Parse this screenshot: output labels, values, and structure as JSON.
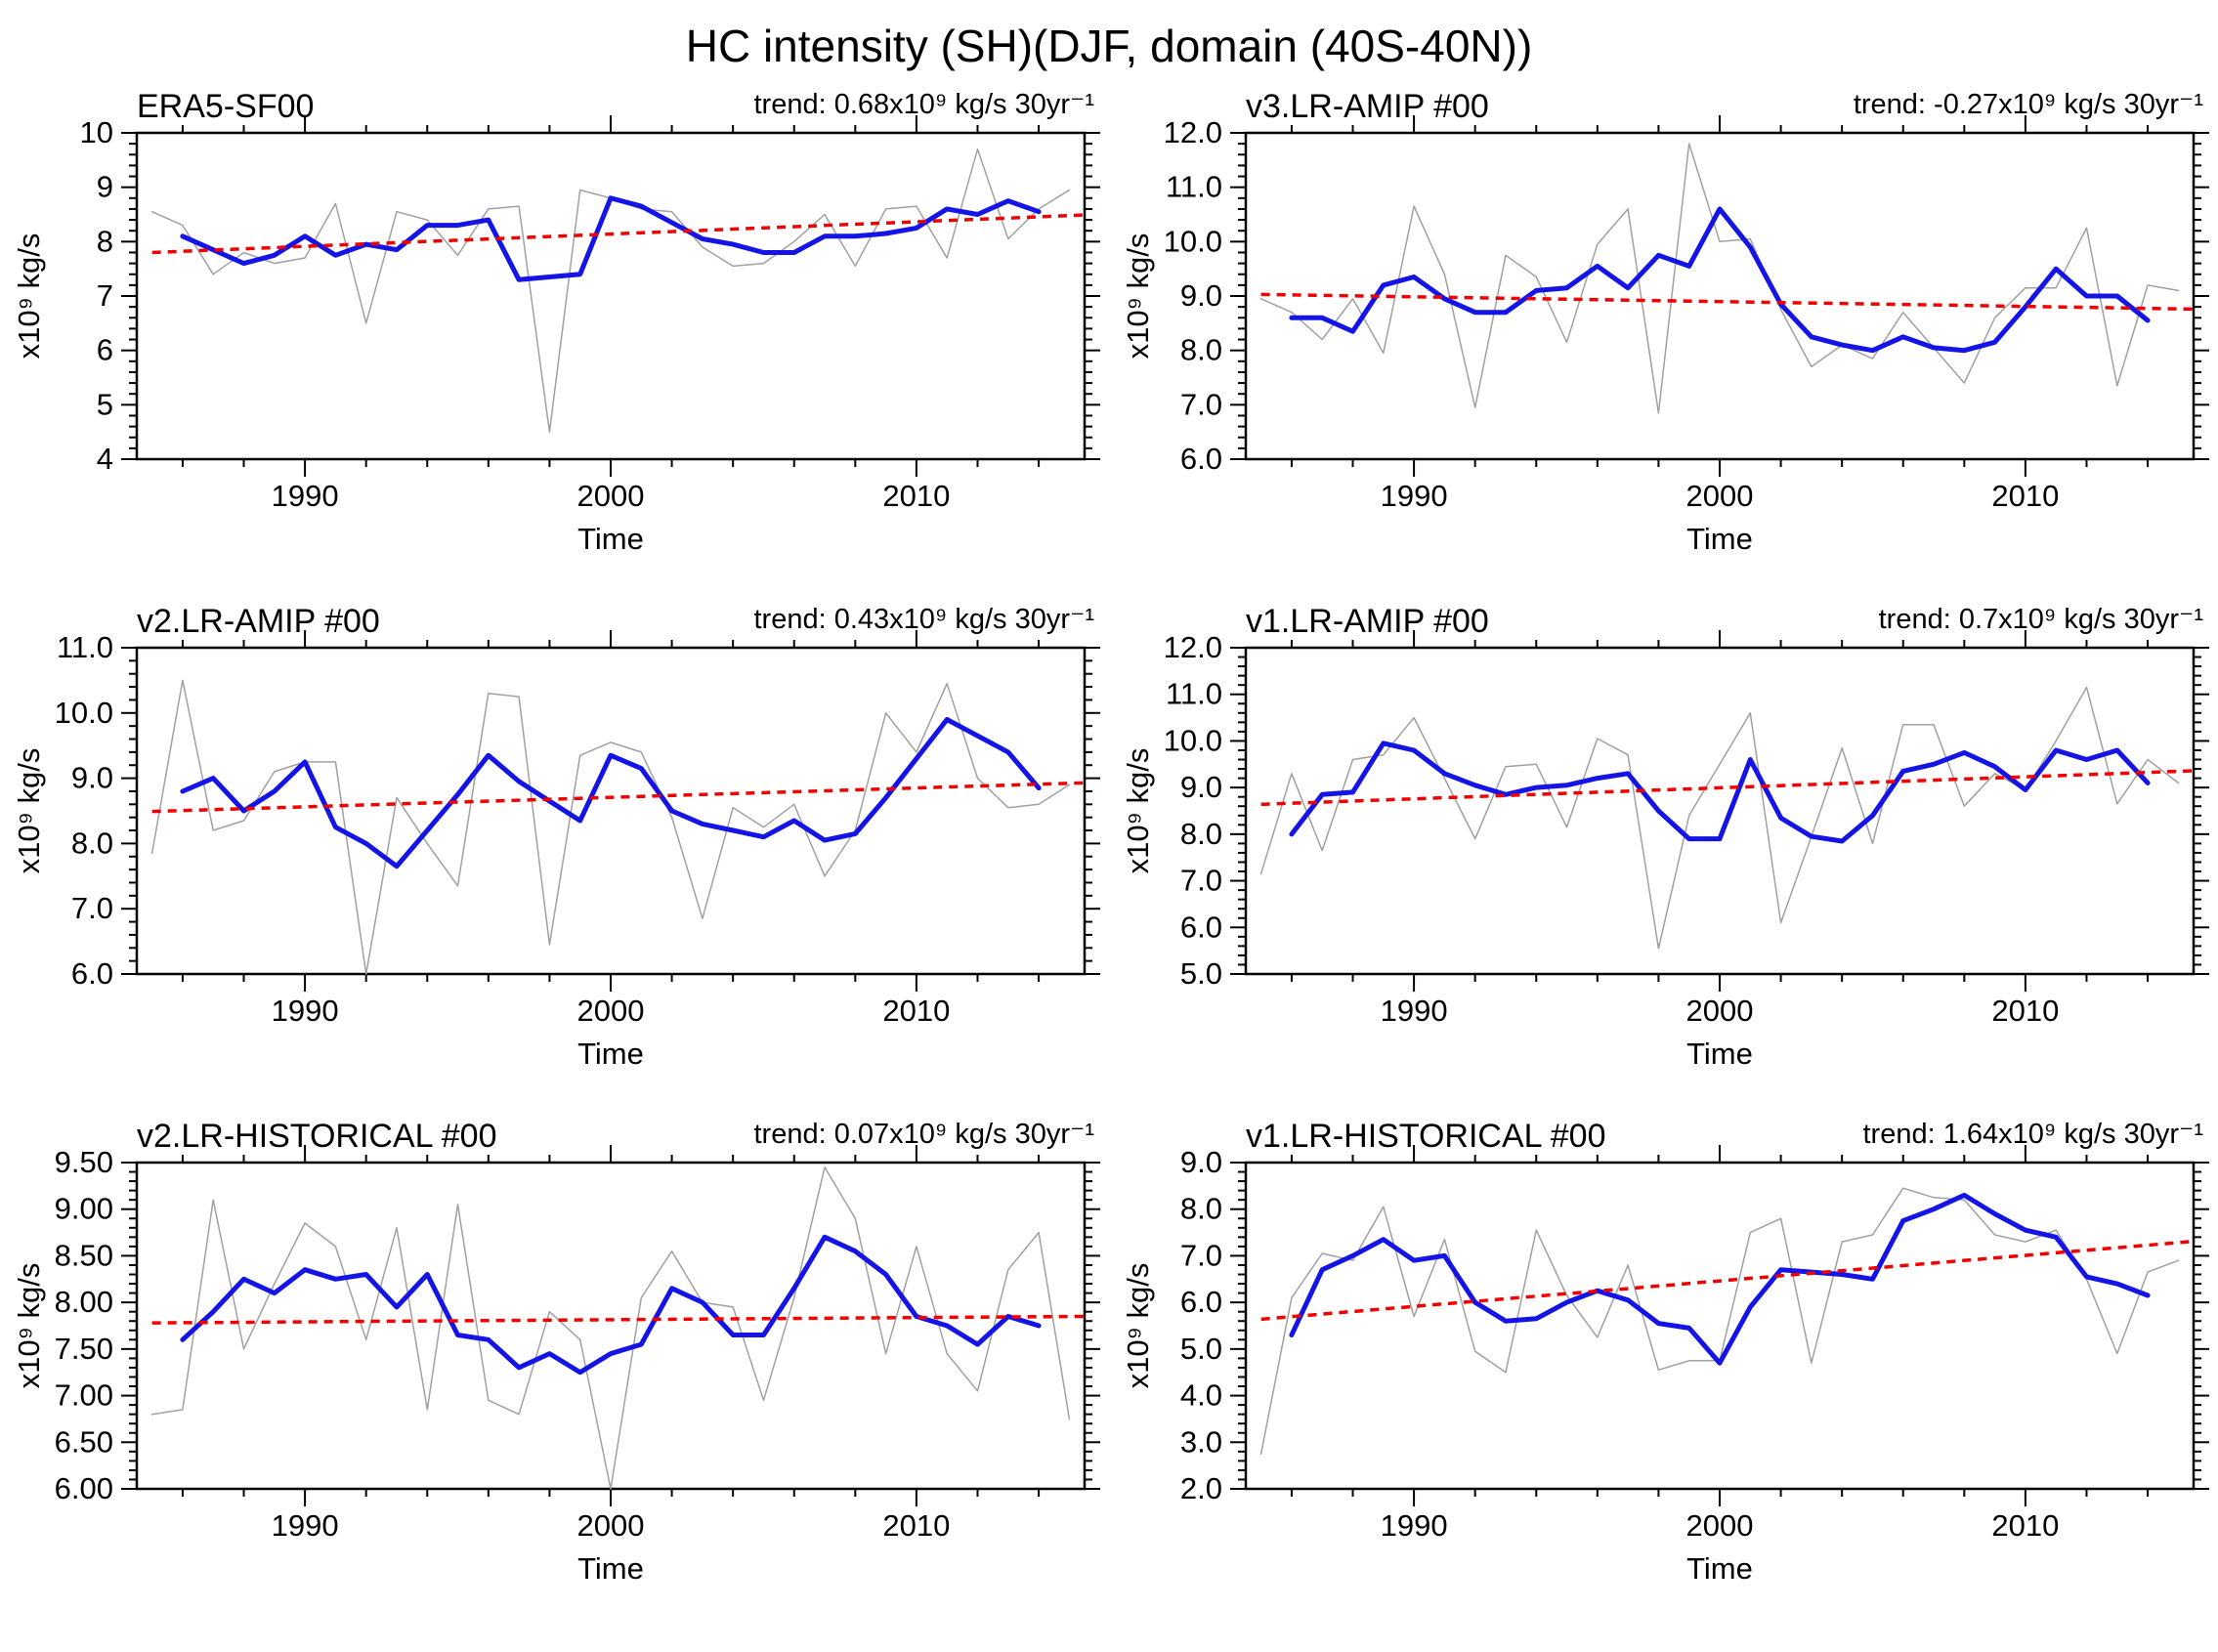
{
  "title": "HC intensity (SH)(DJF, domain (40S-40N))",
  "chart_data": [
    {
      "type": "line",
      "title": "ERA5-SF00",
      "trend_label": "trend: 0.68x10⁹ kg/s 30yr⁻¹",
      "trend_value": 0.68,
      "ylabel": "x10⁹ kg/s",
      "xlabel": "Time",
      "ylim": [
        4,
        10
      ],
      "ytick_step": 1,
      "ytick_decimals": 0,
      "xlim": [
        1984.5,
        2015.5
      ],
      "xticks": [
        1990,
        2000,
        2010
      ],
      "xminor_years": [
        1986,
        1988,
        1992,
        1994,
        1996,
        1998,
        2002,
        2004,
        2006,
        2008,
        2012,
        2014
      ],
      "grid": false,
      "legend": "none",
      "series": [
        {
          "name": "annual",
          "start_year": 1985,
          "values": [
            8.55,
            8.3,
            7.4,
            7.8,
            7.6,
            7.7,
            8.7,
            6.5,
            8.55,
            8.4,
            7.75,
            8.6,
            8.65,
            4.5,
            8.95,
            8.8,
            8.6,
            8.55,
            7.9,
            7.55,
            7.6,
            8.0,
            8.5,
            7.55,
            8.6,
            8.65,
            7.7,
            9.7,
            8.05,
            8.6,
            8.95
          ]
        },
        {
          "name": "smoothed",
          "start_year": 1986,
          "values": [
            8.1,
            7.85,
            7.6,
            7.75,
            8.1,
            7.75,
            7.95,
            7.85,
            8.3,
            8.3,
            8.4,
            7.3,
            7.35,
            7.4,
            8.8,
            8.65,
            8.35,
            8.05,
            7.95,
            7.8,
            7.8,
            8.1,
            8.1,
            8.15,
            8.25,
            8.6,
            8.5,
            8.75,
            8.55
          ]
        },
        {
          "name": "trend",
          "x": [
            1985,
            2015.5
          ],
          "y": [
            7.8,
            8.49
          ]
        }
      ]
    },
    {
      "type": "line",
      "title": "v3.LR-AMIP  #00",
      "trend_label": "trend: -0.27x10⁹ kg/s 30yr⁻¹",
      "trend_value": -0.27,
      "ylabel": "x10⁹ kg/s",
      "xlabel": "Time",
      "ylim": [
        6,
        12
      ],
      "ytick_step": 1,
      "ytick_decimals": 1,
      "xlim": [
        1984.5,
        2015.5
      ],
      "xticks": [
        1990,
        2000,
        2010
      ],
      "xminor_years": [
        1986,
        1988,
        1992,
        1994,
        1996,
        1998,
        2002,
        2004,
        2006,
        2008,
        2012,
        2014
      ],
      "grid": false,
      "legend": "none",
      "series": [
        {
          "name": "annual",
          "start_year": 1985,
          "values": [
            8.95,
            8.7,
            8.2,
            8.95,
            7.95,
            10.65,
            9.4,
            6.95,
            9.75,
            9.35,
            8.15,
            9.95,
            10.6,
            6.85,
            11.8,
            10.0,
            10.05,
            8.75,
            7.7,
            8.1,
            7.85,
            8.7,
            8.05,
            7.4,
            8.6,
            9.15,
            9.15,
            10.25,
            7.35,
            9.2,
            9.1
          ]
        },
        {
          "name": "smoothed",
          "start_year": 1986,
          "values": [
            8.6,
            8.6,
            8.35,
            9.2,
            9.35,
            8.95,
            8.7,
            8.7,
            9.1,
            9.15,
            9.55,
            9.15,
            9.75,
            9.55,
            10.6,
            9.9,
            8.85,
            8.25,
            8.1,
            8.0,
            8.25,
            8.05,
            8.0,
            8.15,
            8.8,
            9.5,
            9.0,
            9.0,
            8.55
          ]
        },
        {
          "name": "trend",
          "x": [
            1985,
            2015.5
          ],
          "y": [
            9.03,
            8.76
          ]
        }
      ]
    },
    {
      "type": "line",
      "title": "v2.LR-AMIP  #00",
      "trend_label": "trend: 0.43x10⁹ kg/s 30yr⁻¹",
      "trend_value": 0.43,
      "ylabel": "x10⁹ kg/s",
      "xlabel": "Time",
      "ylim": [
        6,
        11
      ],
      "ytick_step": 1,
      "ytick_decimals": 1,
      "xlim": [
        1984.5,
        2015.5
      ],
      "xticks": [
        1990,
        2000,
        2010
      ],
      "xminor_years": [
        1986,
        1988,
        1992,
        1994,
        1996,
        1998,
        2002,
        2004,
        2006,
        2008,
        2012,
        2014
      ],
      "grid": false,
      "legend": "none",
      "series": [
        {
          "name": "annual",
          "start_year": 1985,
          "values": [
            7.85,
            10.5,
            8.2,
            8.35,
            9.1,
            9.25,
            9.25,
            6.0,
            8.7,
            8.0,
            7.35,
            10.3,
            10.25,
            6.45,
            9.35,
            9.55,
            9.4,
            8.4,
            6.85,
            8.55,
            8.25,
            8.6,
            7.5,
            8.2,
            10.0,
            9.4,
            10.45,
            9.0,
            8.55,
            8.6,
            8.9
          ]
        },
        {
          "name": "smoothed",
          "start_year": 1986,
          "values": [
            8.8,
            9.0,
            8.5,
            8.8,
            9.25,
            8.25,
            8.0,
            7.65,
            8.2,
            8.75,
            9.35,
            8.95,
            8.65,
            8.35,
            9.35,
            9.15,
            8.5,
            8.3,
            8.2,
            8.1,
            8.35,
            8.05,
            8.15,
            8.7,
            9.3,
            9.9,
            9.65,
            9.4,
            8.85
          ]
        },
        {
          "name": "trend",
          "x": [
            1985,
            2015.5
          ],
          "y": [
            8.49,
            8.93
          ]
        }
      ]
    },
    {
      "type": "line",
      "title": "v1.LR-AMIP  #00",
      "trend_label": "trend: 0.7x10⁹ kg/s 30yr⁻¹",
      "trend_value": 0.7,
      "ylabel": "x10⁹ kg/s",
      "xlabel": "Time",
      "ylim": [
        5,
        12
      ],
      "ytick_step": 1,
      "ytick_decimals": 1,
      "xlim": [
        1984.5,
        2015.5
      ],
      "xticks": [
        1990,
        2000,
        2010
      ],
      "xminor_years": [
        1986,
        1988,
        1992,
        1994,
        1996,
        1998,
        2002,
        2004,
        2006,
        2008,
        2012,
        2014
      ],
      "grid": false,
      "legend": "none",
      "series": [
        {
          "name": "annual",
          "start_year": 1985,
          "values": [
            7.15,
            9.3,
            7.65,
            9.6,
            9.7,
            10.5,
            9.2,
            7.9,
            9.45,
            9.5,
            8.15,
            10.05,
            9.7,
            5.55,
            8.4,
            9.5,
            10.6,
            6.1,
            7.95,
            9.85,
            7.8,
            10.35,
            10.35,
            8.6,
            9.3,
            8.95,
            10.0,
            11.15,
            8.65,
            9.6,
            9.1
          ]
        },
        {
          "name": "smoothed",
          "start_year": 1986,
          "values": [
            8.0,
            8.85,
            8.9,
            9.95,
            9.8,
            9.3,
            9.05,
            8.85,
            9.0,
            9.05,
            9.2,
            9.3,
            8.5,
            7.9,
            7.9,
            9.6,
            8.35,
            7.95,
            7.85,
            8.4,
            9.35,
            9.5,
            9.75,
            9.45,
            8.95,
            9.8,
            9.6,
            9.8,
            9.1
          ]
        },
        {
          "name": "trend",
          "x": [
            1985,
            2015.5
          ],
          "y": [
            8.64,
            9.36
          ]
        }
      ]
    },
    {
      "type": "line",
      "title": "v2.LR-HISTORICAL  #00",
      "trend_label": "trend: 0.07x10⁹ kg/s 30yr⁻¹",
      "trend_value": 0.07,
      "ylabel": "x10⁹ kg/s",
      "xlabel": "Time",
      "ylim": [
        6,
        9.5
      ],
      "ytick_step": 0.5,
      "ytick_decimals": 2,
      "xlim": [
        1984.5,
        2015.5
      ],
      "xticks": [
        1990,
        2000,
        2010
      ],
      "xminor_years": [
        1986,
        1988,
        1992,
        1994,
        1996,
        1998,
        2002,
        2004,
        2006,
        2008,
        2012,
        2014
      ],
      "grid": false,
      "legend": "none",
      "series": [
        {
          "name": "annual",
          "start_year": 1985,
          "values": [
            6.8,
            6.85,
            9.1,
            7.5,
            8.2,
            8.85,
            8.6,
            7.6,
            8.8,
            6.85,
            9.05,
            6.95,
            6.8,
            7.9,
            7.6,
            6.0,
            8.05,
            8.55,
            8.0,
            7.95,
            6.95,
            8.05,
            9.45,
            8.9,
            7.45,
            8.6,
            7.45,
            7.05,
            8.35,
            8.75,
            6.75
          ]
        },
        {
          "name": "smoothed",
          "start_year": 1986,
          "values": [
            7.6,
            7.9,
            8.25,
            8.1,
            8.35,
            8.25,
            8.3,
            7.95,
            8.3,
            7.65,
            7.6,
            7.3,
            7.45,
            7.25,
            7.45,
            7.55,
            8.15,
            8.0,
            7.65,
            7.65,
            8.15,
            8.7,
            8.55,
            8.3,
            7.85,
            7.75,
            7.55,
            7.85,
            7.75
          ]
        },
        {
          "name": "trend",
          "x": [
            1985,
            2015.5
          ],
          "y": [
            7.78,
            7.85
          ]
        }
      ]
    },
    {
      "type": "line",
      "title": "v1.LR-HISTORICAL  #00",
      "trend_label": "trend: 1.64x10⁹ kg/s 30yr⁻¹",
      "trend_value": 1.64,
      "ylabel": "x10⁹ kg/s",
      "xlabel": "Time",
      "ylim": [
        2,
        9
      ],
      "ytick_step": 1,
      "ytick_decimals": 1,
      "xlim": [
        1984.5,
        2015.5
      ],
      "xticks": [
        1990,
        2000,
        2010
      ],
      "xminor_years": [
        1986,
        1988,
        1992,
        1994,
        1996,
        1998,
        2002,
        2004,
        2006,
        2008,
        2012,
        2014
      ],
      "grid": false,
      "legend": "none",
      "series": [
        {
          "name": "annual",
          "start_year": 1985,
          "values": [
            2.75,
            6.1,
            7.05,
            6.9,
            8.05,
            5.7,
            7.35,
            4.95,
            4.5,
            7.55,
            6.15,
            5.25,
            6.8,
            4.55,
            4.75,
            4.75,
            7.5,
            7.8,
            4.7,
            7.3,
            7.45,
            8.45,
            8.25,
            8.2,
            7.45,
            7.3,
            7.55,
            6.5,
            4.9,
            6.65,
            6.9
          ]
        },
        {
          "name": "smoothed",
          "start_year": 1986,
          "values": [
            5.3,
            6.7,
            7.0,
            7.35,
            6.9,
            7.0,
            6.0,
            5.6,
            5.65,
            6.0,
            6.25,
            6.05,
            5.55,
            5.45,
            4.7,
            5.9,
            6.7,
            6.65,
            6.6,
            6.5,
            7.75,
            8.0,
            8.3,
            7.9,
            7.55,
            7.4,
            6.55,
            6.4,
            6.15
          ]
        },
        {
          "name": "trend",
          "x": [
            1985,
            2015.5
          ],
          "y": [
            5.64,
            7.31
          ]
        }
      ]
    }
  ],
  "style": {
    "annual_color": "#a0a0a0",
    "smoothed_color": "#1414e6",
    "trend_color": "#f00000",
    "axis_color": "#000000"
  }
}
